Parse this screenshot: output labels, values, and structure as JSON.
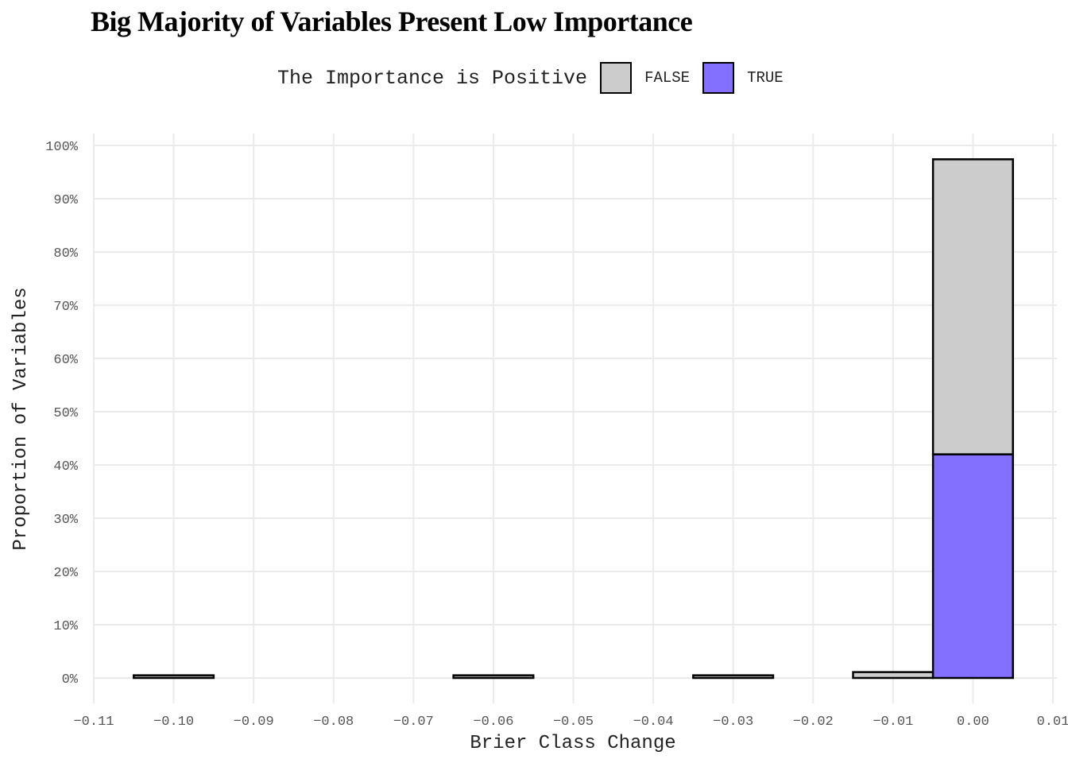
{
  "chart_data": {
    "type": "bar",
    "title": "Big Majority of Variables Present Low Importance",
    "xlabel": "Brier Class Change",
    "ylabel": "Proportion of Variables",
    "legend_title": "The Importance is Positive",
    "legend_placement": "top",
    "xlim": [
      -0.11,
      0.01
    ],
    "ylim": [
      0,
      100
    ],
    "bin_width": 0.01,
    "x_ticks": [
      "-0.11",
      "-0.10",
      "-0.09",
      "-0.08",
      "-0.07",
      "-0.06",
      "-0.05",
      "-0.04",
      "-0.03",
      "-0.02",
      "-0.01",
      "0.00",
      "0.01"
    ],
    "y_ticks": [
      "0%",
      "10%",
      "20%",
      "30%",
      "40%",
      "50%",
      "60%",
      "70%",
      "80%",
      "90%",
      "100%"
    ],
    "x": [
      -0.1,
      -0.09,
      -0.08,
      -0.07,
      -0.06,
      -0.05,
      -0.04,
      -0.03,
      -0.02,
      -0.01,
      0.0
    ],
    "series": [
      {
        "name": "TRUE",
        "color": "#8370FF",
        "values": [
          0,
          0,
          0,
          0,
          0,
          0,
          0,
          0,
          0,
          0,
          42.0
        ]
      },
      {
        "name": "FALSE",
        "color": "#CCCCCC",
        "values": [
          0.5,
          0,
          0,
          0,
          0.5,
          0,
          0,
          0.5,
          0,
          1.1,
          55.4
        ]
      }
    ],
    "grid": true
  }
}
